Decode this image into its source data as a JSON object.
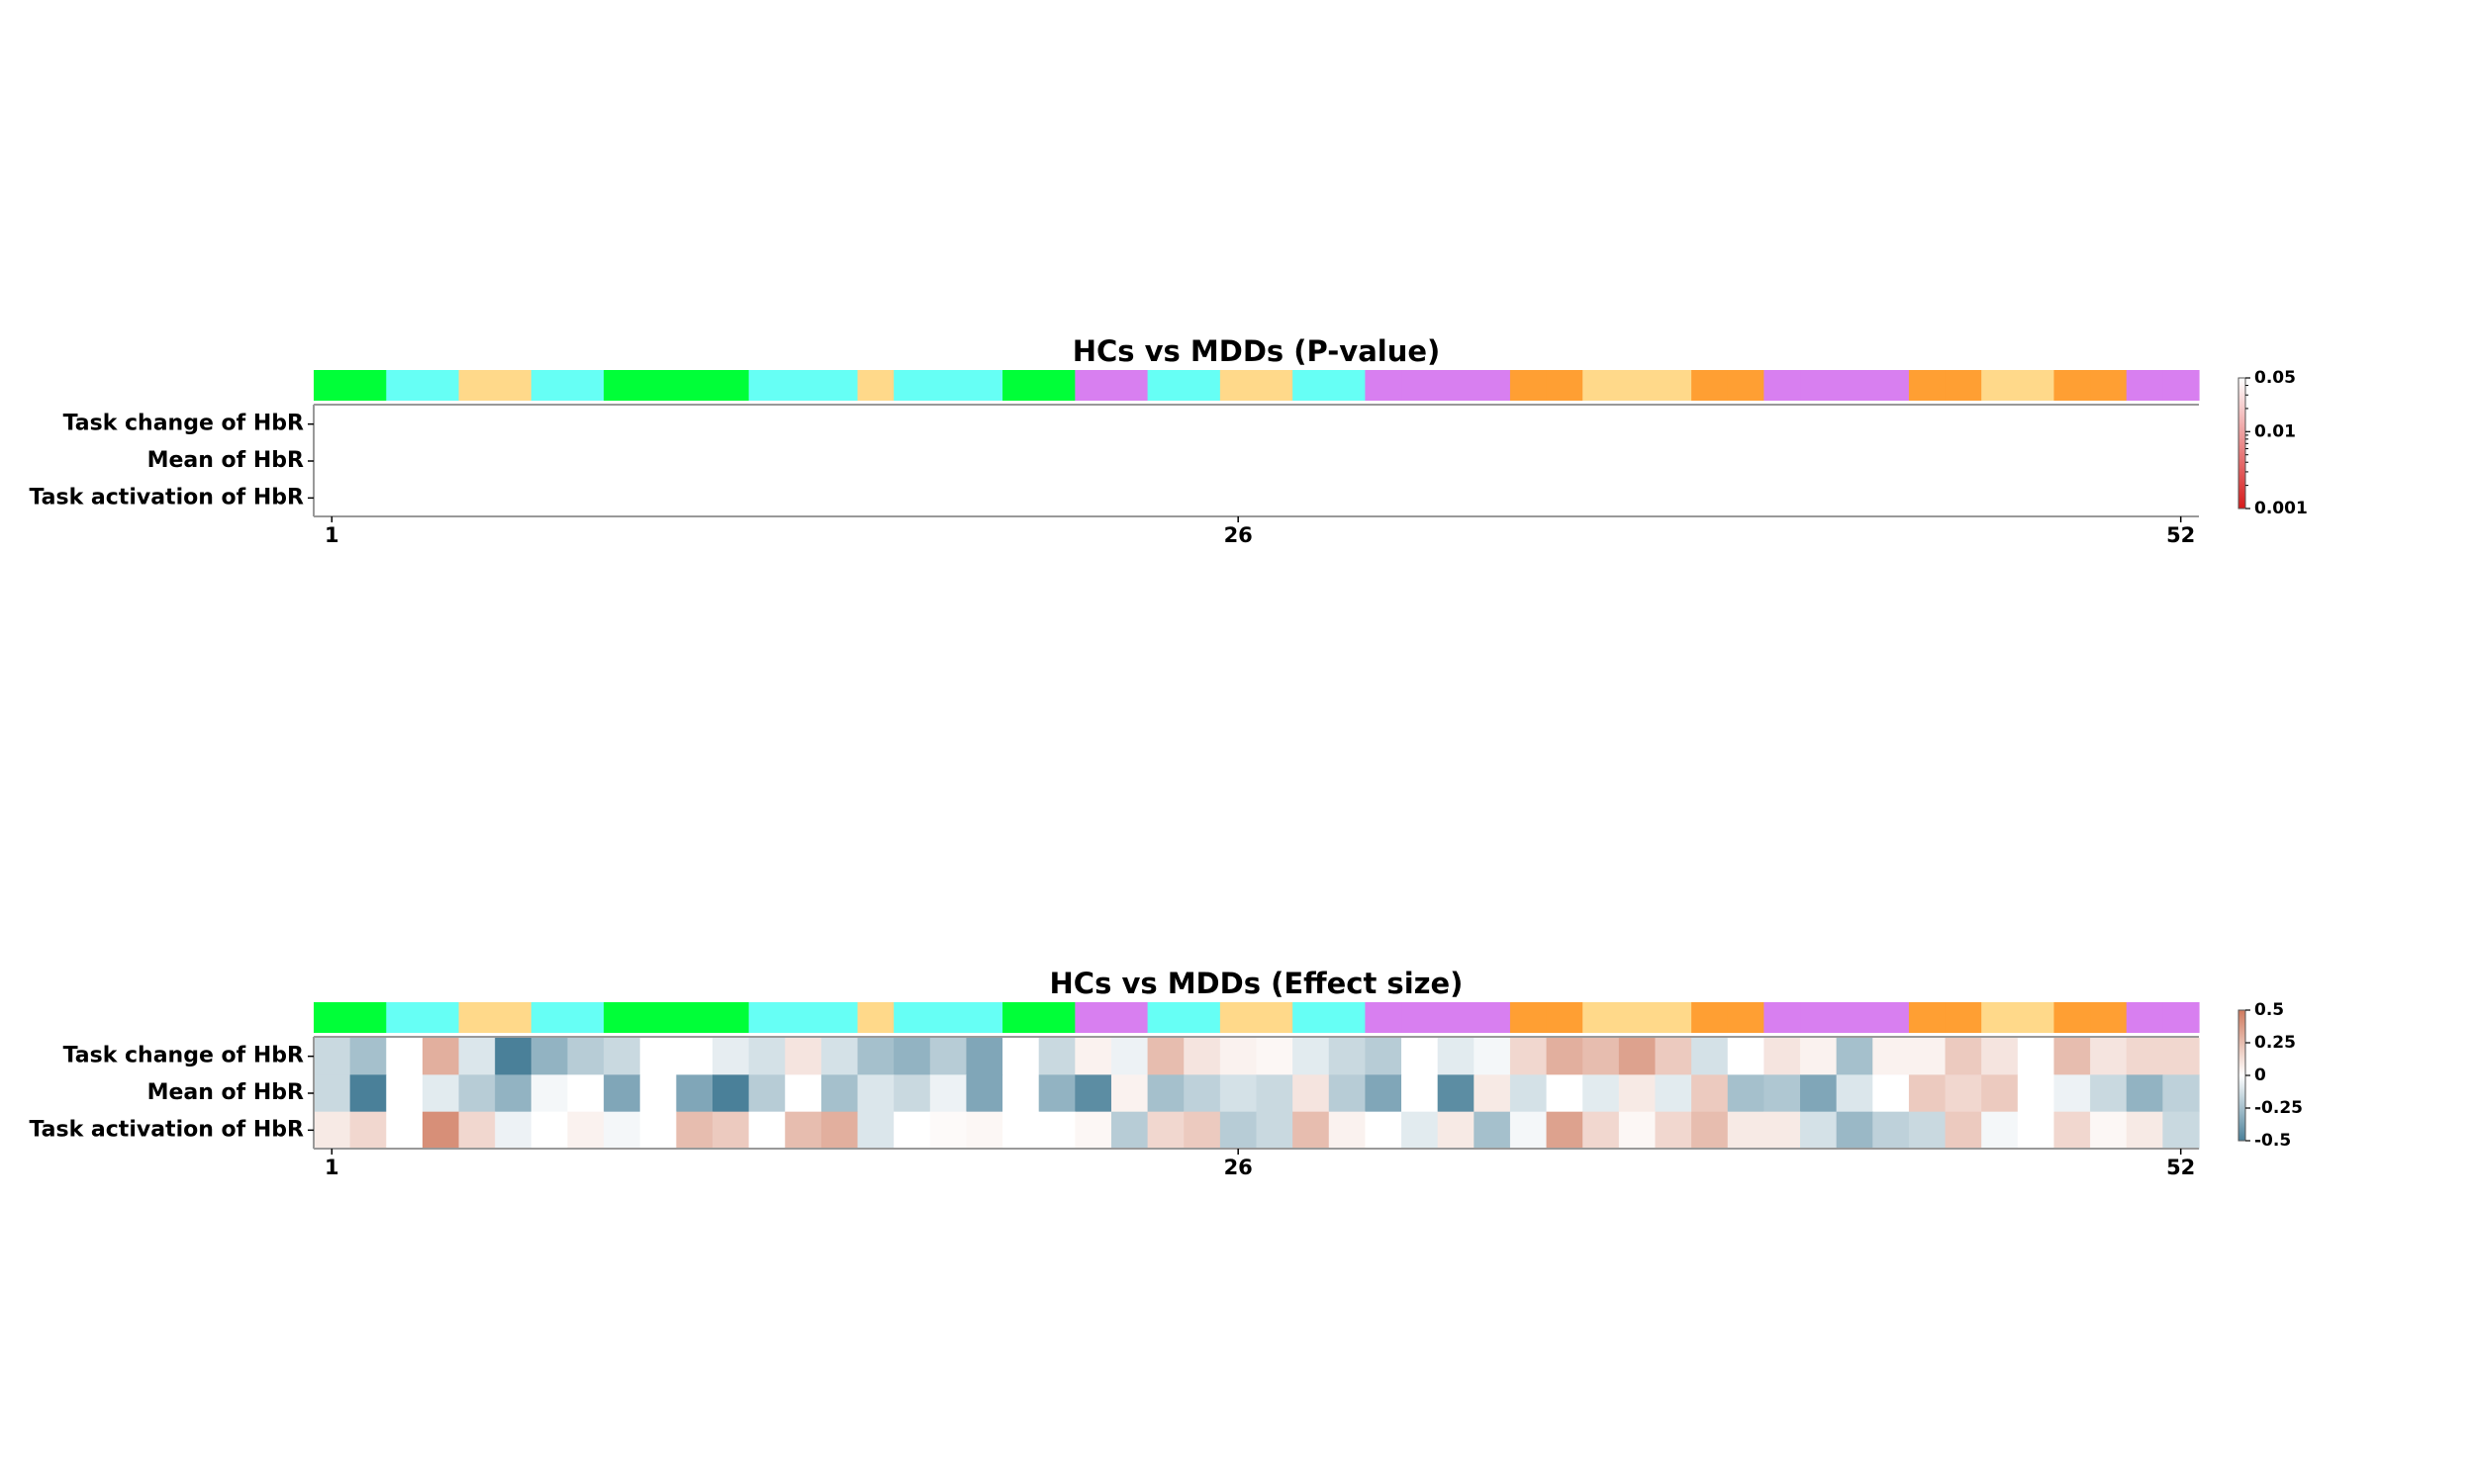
{
  "chart_data": [
    {
      "type": "heatmap",
      "title": "HCs vs MDDs (P-value)",
      "rows": [
        "Task change of HbR",
        "Mean of HbR",
        "Task activation of HbR"
      ],
      "x_range": [
        1,
        52
      ],
      "x_ticks": [
        "1",
        "26",
        "52"
      ],
      "region_colors": [
        "#00ff38",
        "#00ff38",
        "#66fff5",
        "#66fff5",
        "#ffd98a",
        "#ffd98a",
        "#66fff5",
        "#66fff5",
        "#00ff38",
        "#00ff38",
        "#00ff38",
        "#00ff38",
        "#66fff5",
        "#66fff5",
        "#66fff5",
        "#ffd98a",
        "#66fff5",
        "#66fff5",
        "#66fff5",
        "#00ff38",
        "#00ff38",
        "#d87ff0",
        "#d87ff0",
        "#66fff5",
        "#66fff5",
        "#ffd98a",
        "#ffd98a",
        "#66fff5",
        "#66fff5",
        "#d87ff0",
        "#d87ff0",
        "#d87ff0",
        "#d87ff0",
        "#ff9f33",
        "#ff9f33",
        "#ffd98a",
        "#ffd98a",
        "#ffd98a",
        "#ff9f33",
        "#ff9f33",
        "#d87ff0",
        "#d87ff0",
        "#d87ff0",
        "#d87ff0",
        "#ff9f33",
        "#ff9f33",
        "#ffd98a",
        "#ffd98a",
        "#ff9f33",
        "#ff9f33",
        "#d87ff0",
        "#d87ff0"
      ],
      "values": null,
      "colorbar": {
        "scale": "log",
        "range": [
          0.001,
          0.05
        ],
        "ticks": [
          "0.05",
          "0.01",
          "0.001"
        ],
        "colors": [
          "#d61a1a",
          "#ffffff"
        ]
      }
    },
    {
      "type": "heatmap",
      "title": "HCs vs MDDs (Effect size)",
      "rows": [
        "Task change of HbR",
        "Mean of HbR",
        "Task activation of HbR"
      ],
      "x_range": [
        1,
        52
      ],
      "x_ticks": [
        "1",
        "26",
        "52"
      ],
      "region_colors": [
        "#00ff38",
        "#00ff38",
        "#66fff5",
        "#66fff5",
        "#ffd98a",
        "#ffd98a",
        "#66fff5",
        "#66fff5",
        "#00ff38",
        "#00ff38",
        "#00ff38",
        "#00ff38",
        "#66fff5",
        "#66fff5",
        "#66fff5",
        "#ffd98a",
        "#66fff5",
        "#66fff5",
        "#66fff5",
        "#00ff38",
        "#00ff38",
        "#d87ff0",
        "#d87ff0",
        "#66fff5",
        "#66fff5",
        "#ffd98a",
        "#ffd98a",
        "#66fff5",
        "#66fff5",
        "#d87ff0",
        "#d87ff0",
        "#d87ff0",
        "#d87ff0",
        "#ff9f33",
        "#ff9f33",
        "#ffd98a",
        "#ffd98a",
        "#ffd98a",
        "#ff9f33",
        "#ff9f33",
        "#d87ff0",
        "#d87ff0",
        "#d87ff0",
        "#d87ff0",
        "#ff9f33",
        "#ff9f33",
        "#ffd98a",
        "#ffd98a",
        "#ff9f33",
        "#ff9f33",
        "#d87ff0",
        "#d87ff0"
      ],
      "values": [
        [
          -0.15,
          -0.25,
          0.0,
          0.3,
          -0.1,
          -0.5,
          -0.3,
          -0.2,
          -0.15,
          0.0,
          0.0,
          -0.07,
          -0.12,
          0.1,
          -0.12,
          -0.25,
          -0.3,
          -0.2,
          -0.35,
          0.0,
          -0.15,
          0.05,
          -0.05,
          0.25,
          0.1,
          0.05,
          0.03,
          -0.08,
          -0.15,
          -0.2,
          0.0,
          -0.08,
          -0.03,
          0.15,
          0.3,
          0.25,
          0.35,
          0.2,
          -0.12,
          0.0,
          0.1,
          0.05,
          -0.25,
          0.05,
          0.05,
          0.2,
          0.1,
          0.0,
          0.25,
          0.1,
          0.15,
          0.15
        ],
        [
          -0.15,
          -0.5,
          0.0,
          -0.08,
          -0.2,
          -0.3,
          -0.03,
          0.0,
          -0.35,
          0.0,
          -0.35,
          -0.5,
          -0.2,
          0.0,
          -0.25,
          -0.1,
          -0.15,
          -0.05,
          -0.35,
          0.0,
          -0.3,
          -0.45,
          0.05,
          -0.25,
          -0.18,
          -0.12,
          -0.15,
          0.1,
          -0.2,
          -0.35,
          0.0,
          -0.45,
          0.08,
          -0.12,
          0.0,
          -0.08,
          0.08,
          -0.08,
          0.2,
          -0.25,
          -0.22,
          -0.35,
          -0.1,
          0.0,
          0.2,
          0.15,
          0.2,
          0.0,
          -0.05,
          -0.15,
          -0.3,
          -0.18
        ],
        [
          0.08,
          0.15,
          0.0,
          0.42,
          0.15,
          -0.05,
          0.0,
          0.05,
          -0.03,
          0.0,
          0.25,
          0.2,
          0.0,
          0.25,
          0.3,
          -0.1,
          0.0,
          0.02,
          0.03,
          0.0,
          0.0,
          0.03,
          -0.2,
          0.15,
          0.2,
          -0.2,
          -0.15,
          0.25,
          0.05,
          0.0,
          -0.08,
          0.08,
          -0.25,
          -0.03,
          0.35,
          0.15,
          0.03,
          0.15,
          0.25,
          0.08,
          0.08,
          -0.12,
          -0.28,
          -0.18,
          -0.15,
          0.2,
          -0.03,
          0.0,
          0.15,
          0.03,
          0.08,
          -0.15
        ]
      ],
      "colorbar": {
        "scale": "linear",
        "range": [
          -0.5,
          0.5
        ],
        "ticks": [
          "0.5",
          "0.25",
          "0",
          "-0.25",
          "-0.5"
        ],
        "colors": [
          "#4a8099",
          "#ffffff",
          "#cf7a5e"
        ]
      }
    }
  ]
}
